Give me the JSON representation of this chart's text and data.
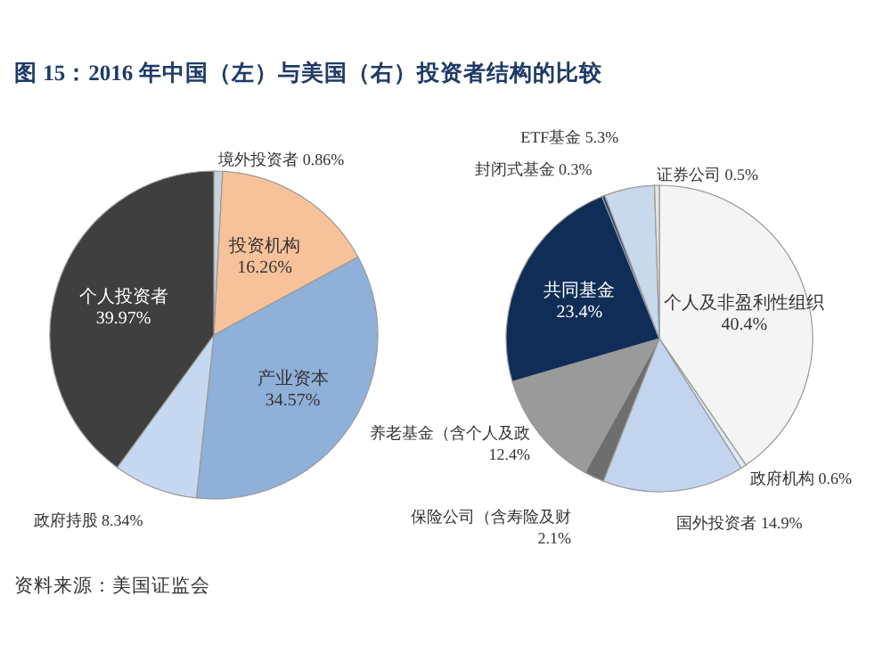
{
  "chart_data": [
    {
      "type": "pie",
      "title": "图 15：2016 年中国（左）与美国（右）投资者结构的比较",
      "categories": [
        "境外投资者",
        "投资机构",
        "产业资本",
        "政府持股",
        "个人投资者"
      ],
      "values": [
        0.86,
        16.26,
        34.57,
        8.34,
        39.97
      ],
      "value_labels": [
        "0.86%",
        "16.26%",
        "34.57%",
        "8.34%",
        "39.97%"
      ],
      "colors": [
        "#c9d3de",
        "#f7c29a",
        "#8fb0d8",
        "#c6d8ef",
        "#3f3f3f"
      ],
      "legend": false
    },
    {
      "type": "pie",
      "categories": [
        "个人及非盈利性组织",
        "政府机构",
        "国外投资者",
        "保险公司（含寿险及财",
        "养老基金（含个人及政",
        "共同基金",
        "封闭式基金",
        "ETF基金",
        "证券公司"
      ],
      "values": [
        40.4,
        0.6,
        14.9,
        2.1,
        12.4,
        23.4,
        0.3,
        5.3,
        0.5
      ],
      "value_labels": [
        "40.4%",
        "0.6%",
        "14.9%",
        "2.1%",
        "12.4%",
        "23.4%",
        "0.3%",
        "5.3%",
        "0.5%"
      ],
      "colors": [
        "#f4f4f4",
        "#dfe9f2",
        "#c3d5ee",
        "#6e6e6e",
        "#9a9a9a",
        "#0f2d57",
        "#1e3f6e",
        "#c9d9ec",
        "#e6e6e6"
      ],
      "legend": false,
      "annotations": [
        "资料来源：美国证监会"
      ]
    }
  ]
}
